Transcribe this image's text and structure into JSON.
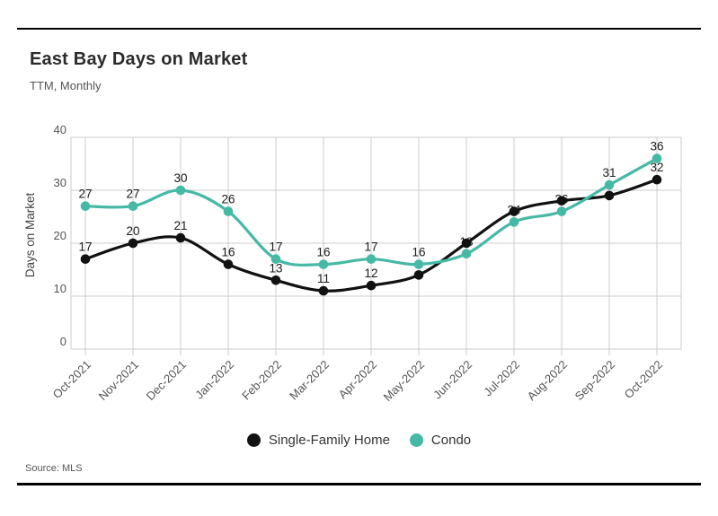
{
  "header": {
    "title": "East Bay Days on Market",
    "subtitle": "TTM, Monthly"
  },
  "footer": {
    "source": "Source: MLS"
  },
  "legend": [
    {
      "label": "Single-Family Home",
      "color": "#111111"
    },
    {
      "label": "Condo",
      "color": "#46b9a5"
    }
  ],
  "colors": {
    "single_family": "#111111",
    "condo": "#46b9a5",
    "grid": "#cccccc",
    "axis_text": "#555555",
    "data_label": "#1a1a1a"
  },
  "chart_data": {
    "type": "line",
    "title": "East Bay Days on Market",
    "subtitle": "TTM, Monthly",
    "x": [
      "Oct-2021",
      "Nov-2021",
      "Dec-2021",
      "Jan-2022",
      "Feb-2022",
      "Mar-2022",
      "Apr-2022",
      "May-2022",
      "Jun-2022",
      "Jul-2022",
      "Aug-2022",
      "Sep-2022",
      "Oct-2022"
    ],
    "xlabel": "",
    "ylabel": "Days on Market",
    "ylim": [
      0,
      40
    ],
    "yticks": [
      0,
      10,
      20,
      30,
      40
    ],
    "grid": true,
    "legend_position": "bottom",
    "marker": "circle",
    "smooth": true,
    "series": [
      {
        "name": "Single-Family Home",
        "color": "#111111",
        "values": [
          17,
          20,
          21,
          16,
          13,
          11,
          12,
          14,
          20,
          26,
          28,
          29,
          32
        ],
        "labels_shown": [
          true,
          true,
          true,
          true,
          true,
          true,
          true,
          false,
          false,
          false,
          false,
          false,
          true
        ]
      },
      {
        "name": "Condo",
        "color": "#46b9a5",
        "values": [
          27,
          27,
          30,
          26,
          17,
          16,
          17,
          16,
          18,
          24,
          26,
          31,
          36
        ],
        "labels_shown": [
          true,
          true,
          true,
          true,
          true,
          true,
          true,
          true,
          true,
          true,
          true,
          true,
          true
        ]
      }
    ]
  }
}
